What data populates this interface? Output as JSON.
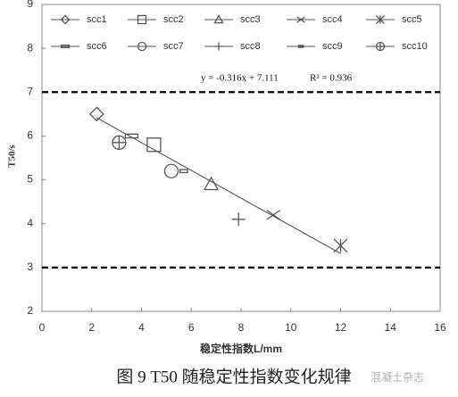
{
  "chart_data": {
    "type": "scatter",
    "x_label": "稳定性指数L/mm",
    "y_label": "T50/s",
    "xlim": [
      0,
      16
    ],
    "xticks": [
      0,
      2,
      4,
      6,
      8,
      10,
      12,
      14,
      16
    ],
    "ylim": [
      2,
      9
    ],
    "yticks": [
      2,
      3,
      4,
      5,
      6,
      7,
      8,
      9
    ],
    "reference_lines": [
      7,
      3
    ],
    "trendline": {
      "slope": -0.316,
      "intercept": 7.111,
      "label": "y = -0.316x + 7.111",
      "r2_label": "R² = 0.936"
    },
    "legend": "top",
    "series": [
      {
        "name": "scc1",
        "color": "#555555",
        "marker": "diamond",
        "x": [
          2.2
        ],
        "values": [
          6.5
        ]
      },
      {
        "name": "scc2",
        "color": "#555555",
        "marker": "square",
        "x": [
          4.5
        ],
        "values": [
          5.8
        ]
      },
      {
        "name": "scc3",
        "color": "#555555",
        "marker": "triangle",
        "x": [
          6.8
        ],
        "values": [
          4.9
        ]
      },
      {
        "name": "scc4",
        "color": "#555555",
        "marker": "cross",
        "x": [
          9.3
        ],
        "values": [
          4.2
        ]
      },
      {
        "name": "scc5",
        "color": "#555555",
        "marker": "asterisk",
        "x": [
          12.0
        ],
        "values": [
          3.5
        ]
      },
      {
        "name": "scc6",
        "color": "#555555",
        "marker": "dash",
        "x": [
          3.6
        ],
        "values": [
          6.0
        ]
      },
      {
        "name": "scc7",
        "color": "#555555",
        "marker": "circle",
        "x": [
          5.2
        ],
        "values": [
          5.2
        ]
      },
      {
        "name": "scc8",
        "color": "#555555",
        "marker": "plus",
        "x": [
          7.9
        ],
        "values": [
          4.1
        ]
      },
      {
        "name": "scc9",
        "color": "#555555",
        "marker": "smalldash",
        "x": [
          5.7
        ],
        "values": [
          5.2
        ]
      },
      {
        "name": "scc10",
        "color": "#555555",
        "marker": "circleplus",
        "x": [
          3.1
        ],
        "values": [
          5.85
        ]
      }
    ]
  },
  "caption": "图 9 T50 随稳定性指数变化规律",
  "watermark": "混凝土杂志"
}
